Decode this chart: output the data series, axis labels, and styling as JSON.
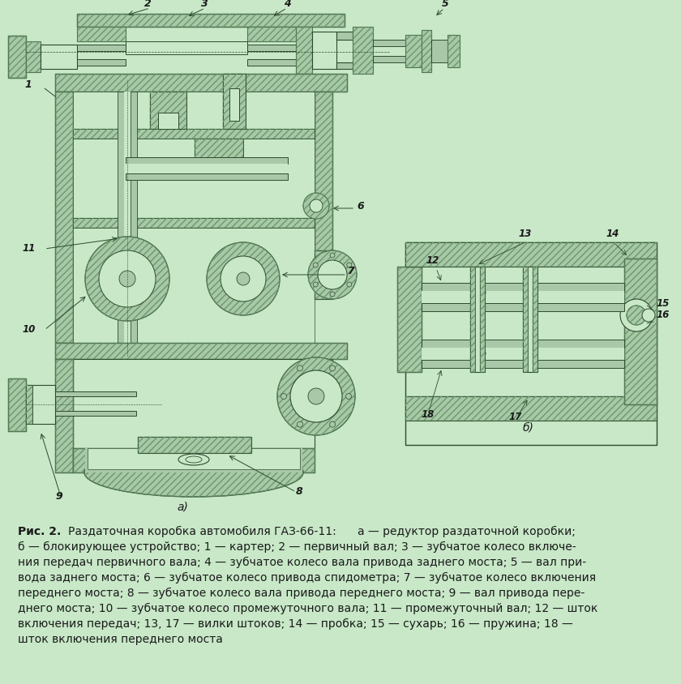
{
  "background_color": "#c8e8c8",
  "fig_width": 8.4,
  "fig_height": 8.45,
  "caption_lines": [
    "б — блокирующее устройство; 1 — картер; 2 — первичный вал; 3 — зубчатое колесо включе-",
    "ния передач первичного вала; 4 — зубчатое колесо вала привода заднего моста; 5 — вал при-",
    "вода заднего моста; 6 — зубчатое колесо привода спидометра; 7 — зубчатое колесо включения",
    "переднего моста; 8 — зубчатое колесо вала привода переднего моста; 9 — вал привода пере-",
    "днего моста; 10 — зубчатое колесо промежуточного вала; 11 — промежуточный вал; 12 — шток",
    "включения передач; 13, 17 — вилки штоков; 14 — пробка; 15 — сухарь; 16 — пружина; 18 —",
    "шток включения переднего моста"
  ],
  "text_color": "#1a1a1a",
  "dk": "#2d4a2d",
  "lt": "#c8e8c8",
  "metal_fc": "#a8c8a8",
  "ht": "#6a9a6a"
}
